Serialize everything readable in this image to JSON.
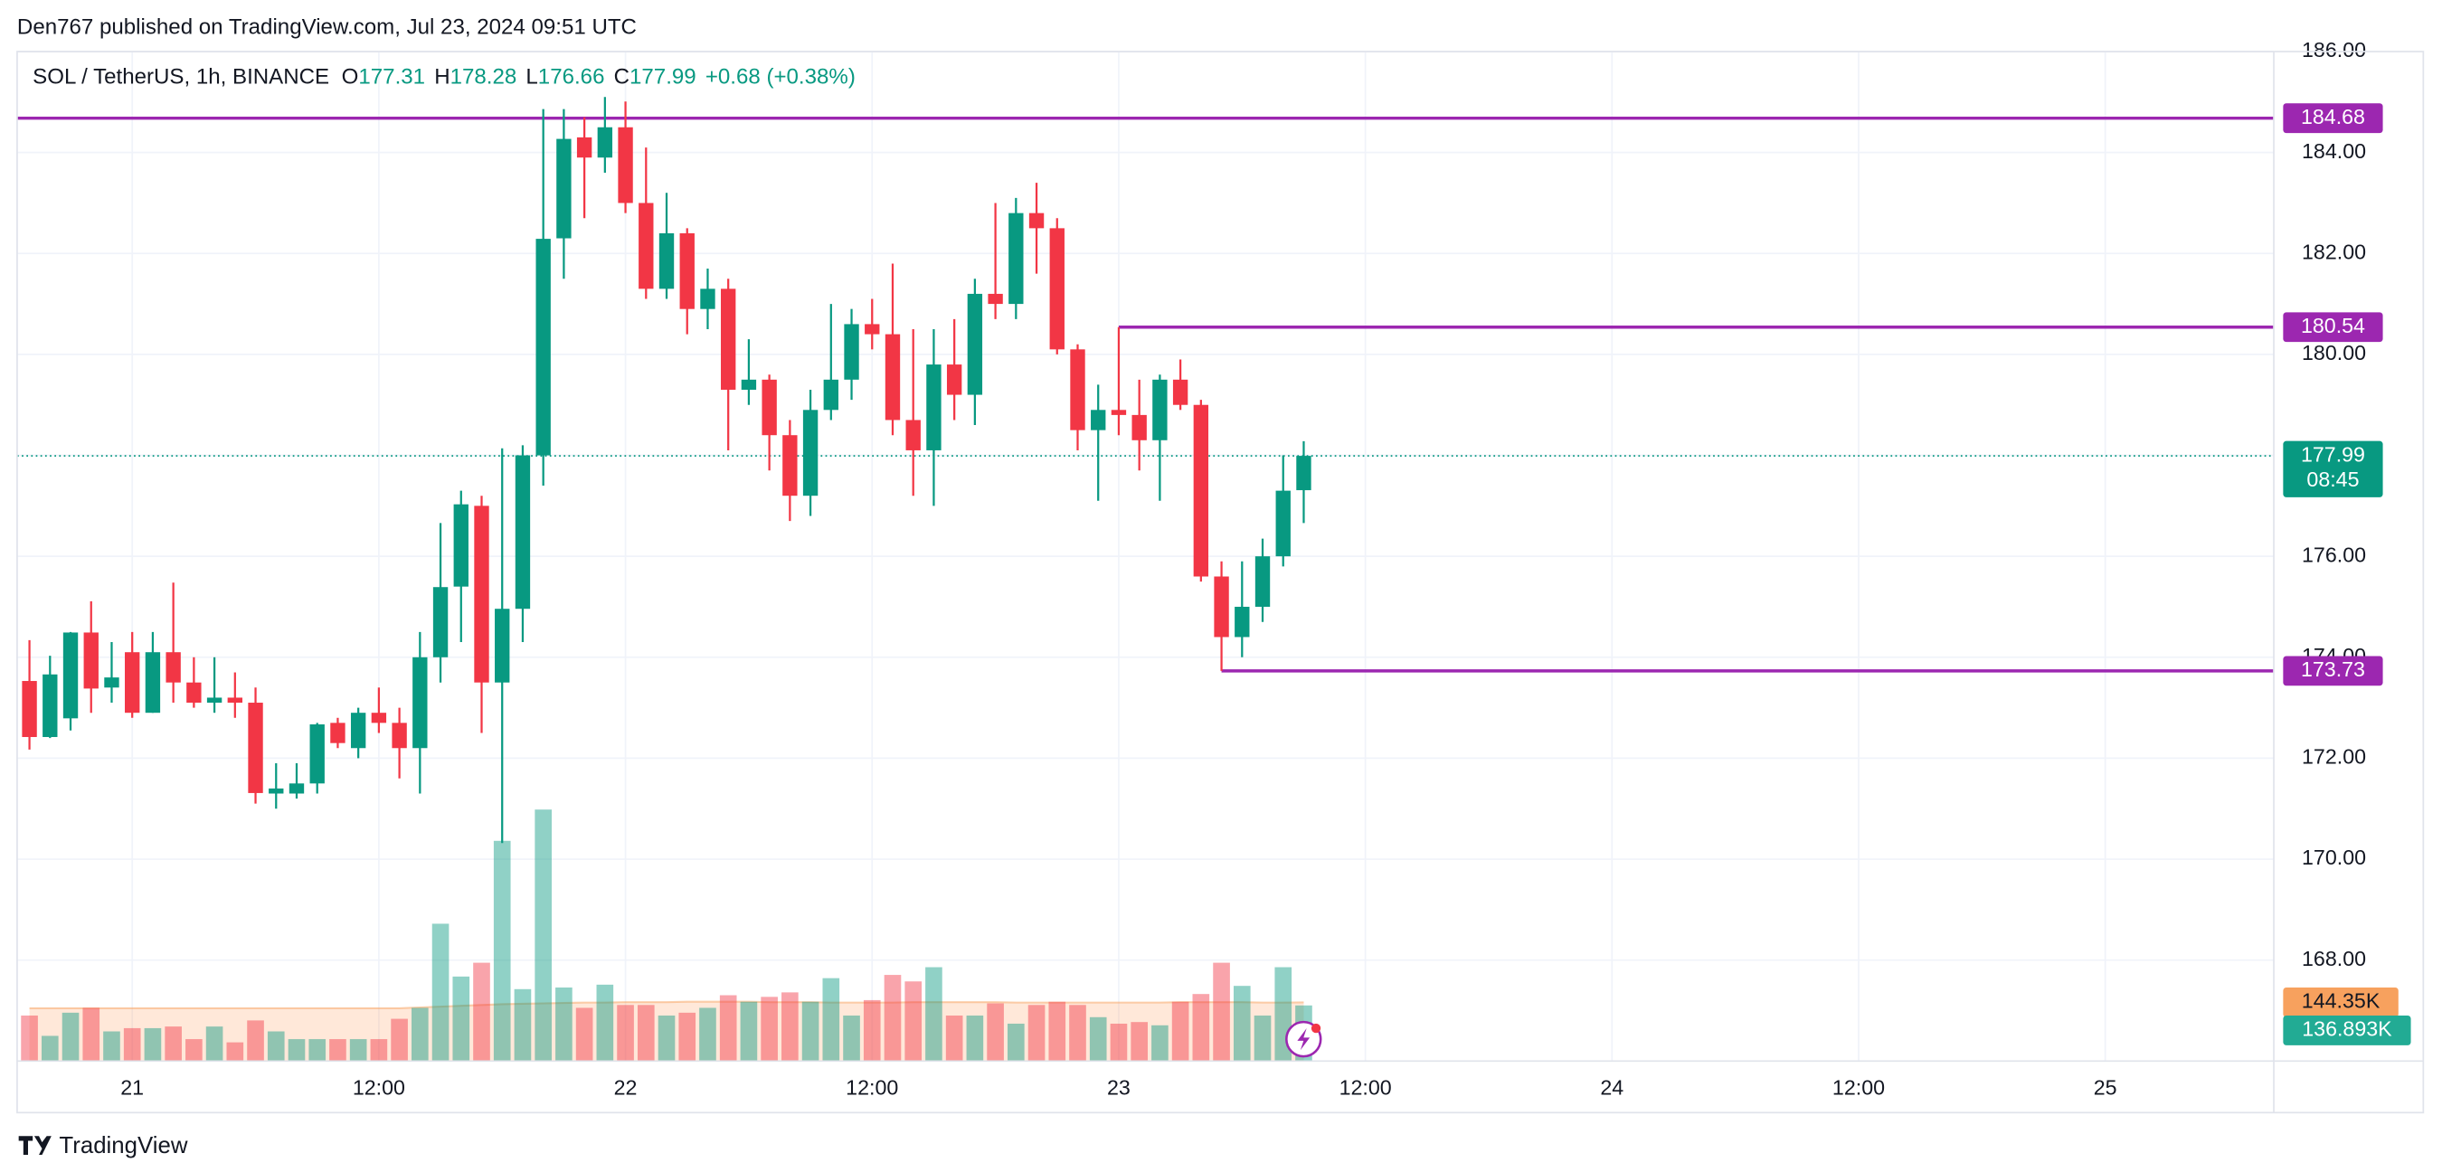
{
  "header": "Den767 published on TradingView.com, Jul 23, 2024 09:51 UTC",
  "footer": "TradingView",
  "chart_data": {
    "type": "candlestick",
    "symbol": "SOL / TetherUS, 1h, BINANCE",
    "legend": {
      "o_label": "O",
      "open": 177.31,
      "h_label": "H",
      "high": 178.28,
      "l_label": "L",
      "low": 176.66,
      "c_label": "C",
      "close": 177.99,
      "change": "+0.68 (+0.38%)"
    },
    "up_color": "#089981",
    "down_color": "#f23645",
    "x": [
      -5,
      -4,
      -3,
      -2,
      -1,
      0,
      1,
      2,
      3,
      4,
      5,
      6,
      7,
      8,
      9,
      10,
      11,
      12,
      13,
      14,
      15,
      16,
      17,
      18,
      19,
      20,
      21,
      22,
      23,
      24,
      25,
      26,
      27,
      28,
      29,
      30,
      31,
      32,
      33,
      34,
      35,
      36,
      37,
      38,
      39,
      40,
      41,
      42,
      43,
      44,
      45,
      46,
      47,
      48,
      49,
      50,
      51,
      52,
      53,
      54,
      55,
      56,
      57
    ],
    "open": [
      173.53,
      172.42,
      172.79,
      174.49,
      173.4,
      174.1,
      172.9,
      174.1,
      173.5,
      173.1,
      173.2,
      173.1,
      171.3,
      171.3,
      171.5,
      172.7,
      172.2,
      172.9,
      172.7,
      172.2,
      174.0,
      175.4,
      177.0,
      173.5,
      174.96,
      178.0,
      182.3,
      184.3,
      183.9,
      184.5,
      183.0,
      181.3,
      182.4,
      180.9,
      181.3,
      179.3,
      179.5,
      178.4,
      177.2,
      178.9,
      179.5,
      180.6,
      180.4,
      178.7,
      178.1,
      179.8,
      179.2,
      181.2,
      181.0,
      182.8,
      182.5,
      180.1,
      178.5,
      178.9,
      178.8,
      178.3,
      179.5,
      179.0,
      175.6,
      174.4,
      175.0,
      176.0,
      177.31
    ],
    "high": [
      174.34,
      174.03,
      174.5,
      175.11,
      174.3,
      174.5,
      174.5,
      175.48,
      174.0,
      174.0,
      173.7,
      173.4,
      171.9,
      171.9,
      172.7,
      172.8,
      173.0,
      173.4,
      173.0,
      174.5,
      176.66,
      177.3,
      177.2,
      178.14,
      178.2,
      184.86,
      184.86,
      184.7,
      185.1,
      185.01,
      184.1,
      183.2,
      182.5,
      181.7,
      181.5,
      180.3,
      179.6,
      178.7,
      179.3,
      181.0,
      180.9,
      181.1,
      181.8,
      180.5,
      180.5,
      180.7,
      181.5,
      183.0,
      183.1,
      183.4,
      182.7,
      180.2,
      179.4,
      180.54,
      179.5,
      179.6,
      179.9,
      179.1,
      175.9,
      175.9,
      176.35,
      178.0,
      178.28
    ],
    "low": [
      172.17,
      172.4,
      172.55,
      172.9,
      173.1,
      172.8,
      172.9,
      173.1,
      173.0,
      172.9,
      172.8,
      171.1,
      171.0,
      171.2,
      171.3,
      172.2,
      172.0,
      172.5,
      171.6,
      171.3,
      173.5,
      174.3,
      172.5,
      170.32,
      174.3,
      177.4,
      181.5,
      182.7,
      183.6,
      182.8,
      181.1,
      181.1,
      180.4,
      180.5,
      178.1,
      179.0,
      177.7,
      176.7,
      176.8,
      178.7,
      179.1,
      180.1,
      178.4,
      177.2,
      177.0,
      178.7,
      178.6,
      180.7,
      180.7,
      181.6,
      180.0,
      178.1,
      177.1,
      178.4,
      177.7,
      177.1,
      178.9,
      175.5,
      173.73,
      174.0,
      174.7,
      175.8,
      176.66
    ],
    "close": [
      172.42,
      173.66,
      174.49,
      173.38,
      173.6,
      172.9,
      174.1,
      173.5,
      173.1,
      173.2,
      173.1,
      171.31,
      171.4,
      171.5,
      172.67,
      172.3,
      172.9,
      172.7,
      172.2,
      174.0,
      175.39,
      177.03,
      173.5,
      174.96,
      178.0,
      182.29,
      184.27,
      183.9,
      184.5,
      183.0,
      181.3,
      182.4,
      180.9,
      181.3,
      179.3,
      179.5,
      178.4,
      177.2,
      178.9,
      179.5,
      180.6,
      180.4,
      178.7,
      178.1,
      179.8,
      179.2,
      181.2,
      181.0,
      182.8,
      182.5,
      180.1,
      178.5,
      178.9,
      178.8,
      178.3,
      179.5,
      179.0,
      175.6,
      174.4,
      175.0,
      176.0,
      177.3,
      177.99
    ],
    "volume": {
      "values": [
        112000,
        62000,
        119000,
        131000,
        73000,
        81000,
        81000,
        85000,
        54000,
        85000,
        46000,
        100000,
        73000,
        54000,
        54000,
        54000,
        54000,
        54000,
        104000,
        131000,
        338000,
        208000,
        242000,
        542000,
        177000,
        619000,
        181000,
        131000,
        188000,
        138000,
        138000,
        112000,
        119000,
        131000,
        162000,
        146000,
        158000,
        169000,
        146000,
        204000,
        112000,
        150000,
        212000,
        196000,
        231000,
        112000,
        112000,
        142000,
        92000,
        138000,
        146000,
        138000,
        108000,
        92000,
        96000,
        88000,
        146000,
        165000,
        242000,
        185000,
        112000,
        231000,
        136893
      ],
      "ma": [
        130000,
        130000,
        130000,
        130000,
        130000,
        130000,
        130000,
        130000,
        130000,
        130000,
        130000,
        130000,
        130000,
        130000,
        130000,
        130000,
        130000,
        130000,
        130000,
        132000,
        134000,
        136000,
        138000,
        140000,
        141000,
        142000,
        143000,
        144000,
        144000,
        145000,
        145000,
        145000,
        146000,
        146000,
        146000,
        146000,
        145000,
        145000,
        145000,
        144000,
        144000,
        144000,
        144000,
        145000,
        145000,
        145000,
        145000,
        145000,
        144000,
        144000,
        144000,
        144000,
        144000,
        144000,
        144000,
        144000,
        145000,
        145000,
        145000,
        145000,
        144000,
        144000,
        144350
      ],
      "ma_label": "144.35K",
      "last_label": "136.893K",
      "ma_color": "#f7a15e",
      "last_color": "#22ab94"
    },
    "hlines": [
      {
        "value": 184.68,
        "start": -5.6
      },
      {
        "value": 180.54,
        "start": 48
      },
      {
        "value": 173.73,
        "start": 53
      }
    ],
    "hline_color": "#9c27b0",
    "last_price": 177.99,
    "countdown": "08:45",
    "xlim": [
      -5.6,
      104.2
    ],
    "xticks": [
      {
        "value": 0,
        "label": "21"
      },
      {
        "value": 12,
        "label": "12:00"
      },
      {
        "value": 24,
        "label": "22"
      },
      {
        "value": 36,
        "label": "12:00"
      },
      {
        "value": 48,
        "label": "23"
      },
      {
        "value": 60,
        "label": "12:00"
      },
      {
        "value": 72,
        "label": "24"
      },
      {
        "value": 84,
        "label": "12:00"
      },
      {
        "value": 96,
        "label": "25"
      }
    ],
    "ylim": [
      166,
      186
    ],
    "yticks": [
      {
        "value": 168,
        "label": "168.00"
      },
      {
        "value": 170,
        "label": "170.00"
      },
      {
        "value": 172,
        "label": "172.00"
      },
      {
        "value": 174,
        "label": "174.00"
      },
      {
        "value": 176,
        "label": "176.00"
      },
      {
        "value": 178,
        "label": "178.00"
      },
      {
        "value": 180,
        "label": "180.00"
      },
      {
        "value": 182,
        "label": "182.00"
      },
      {
        "value": 184,
        "label": "184.00"
      },
      {
        "value": 186,
        "label": "186.00"
      }
    ],
    "grid": true
  }
}
